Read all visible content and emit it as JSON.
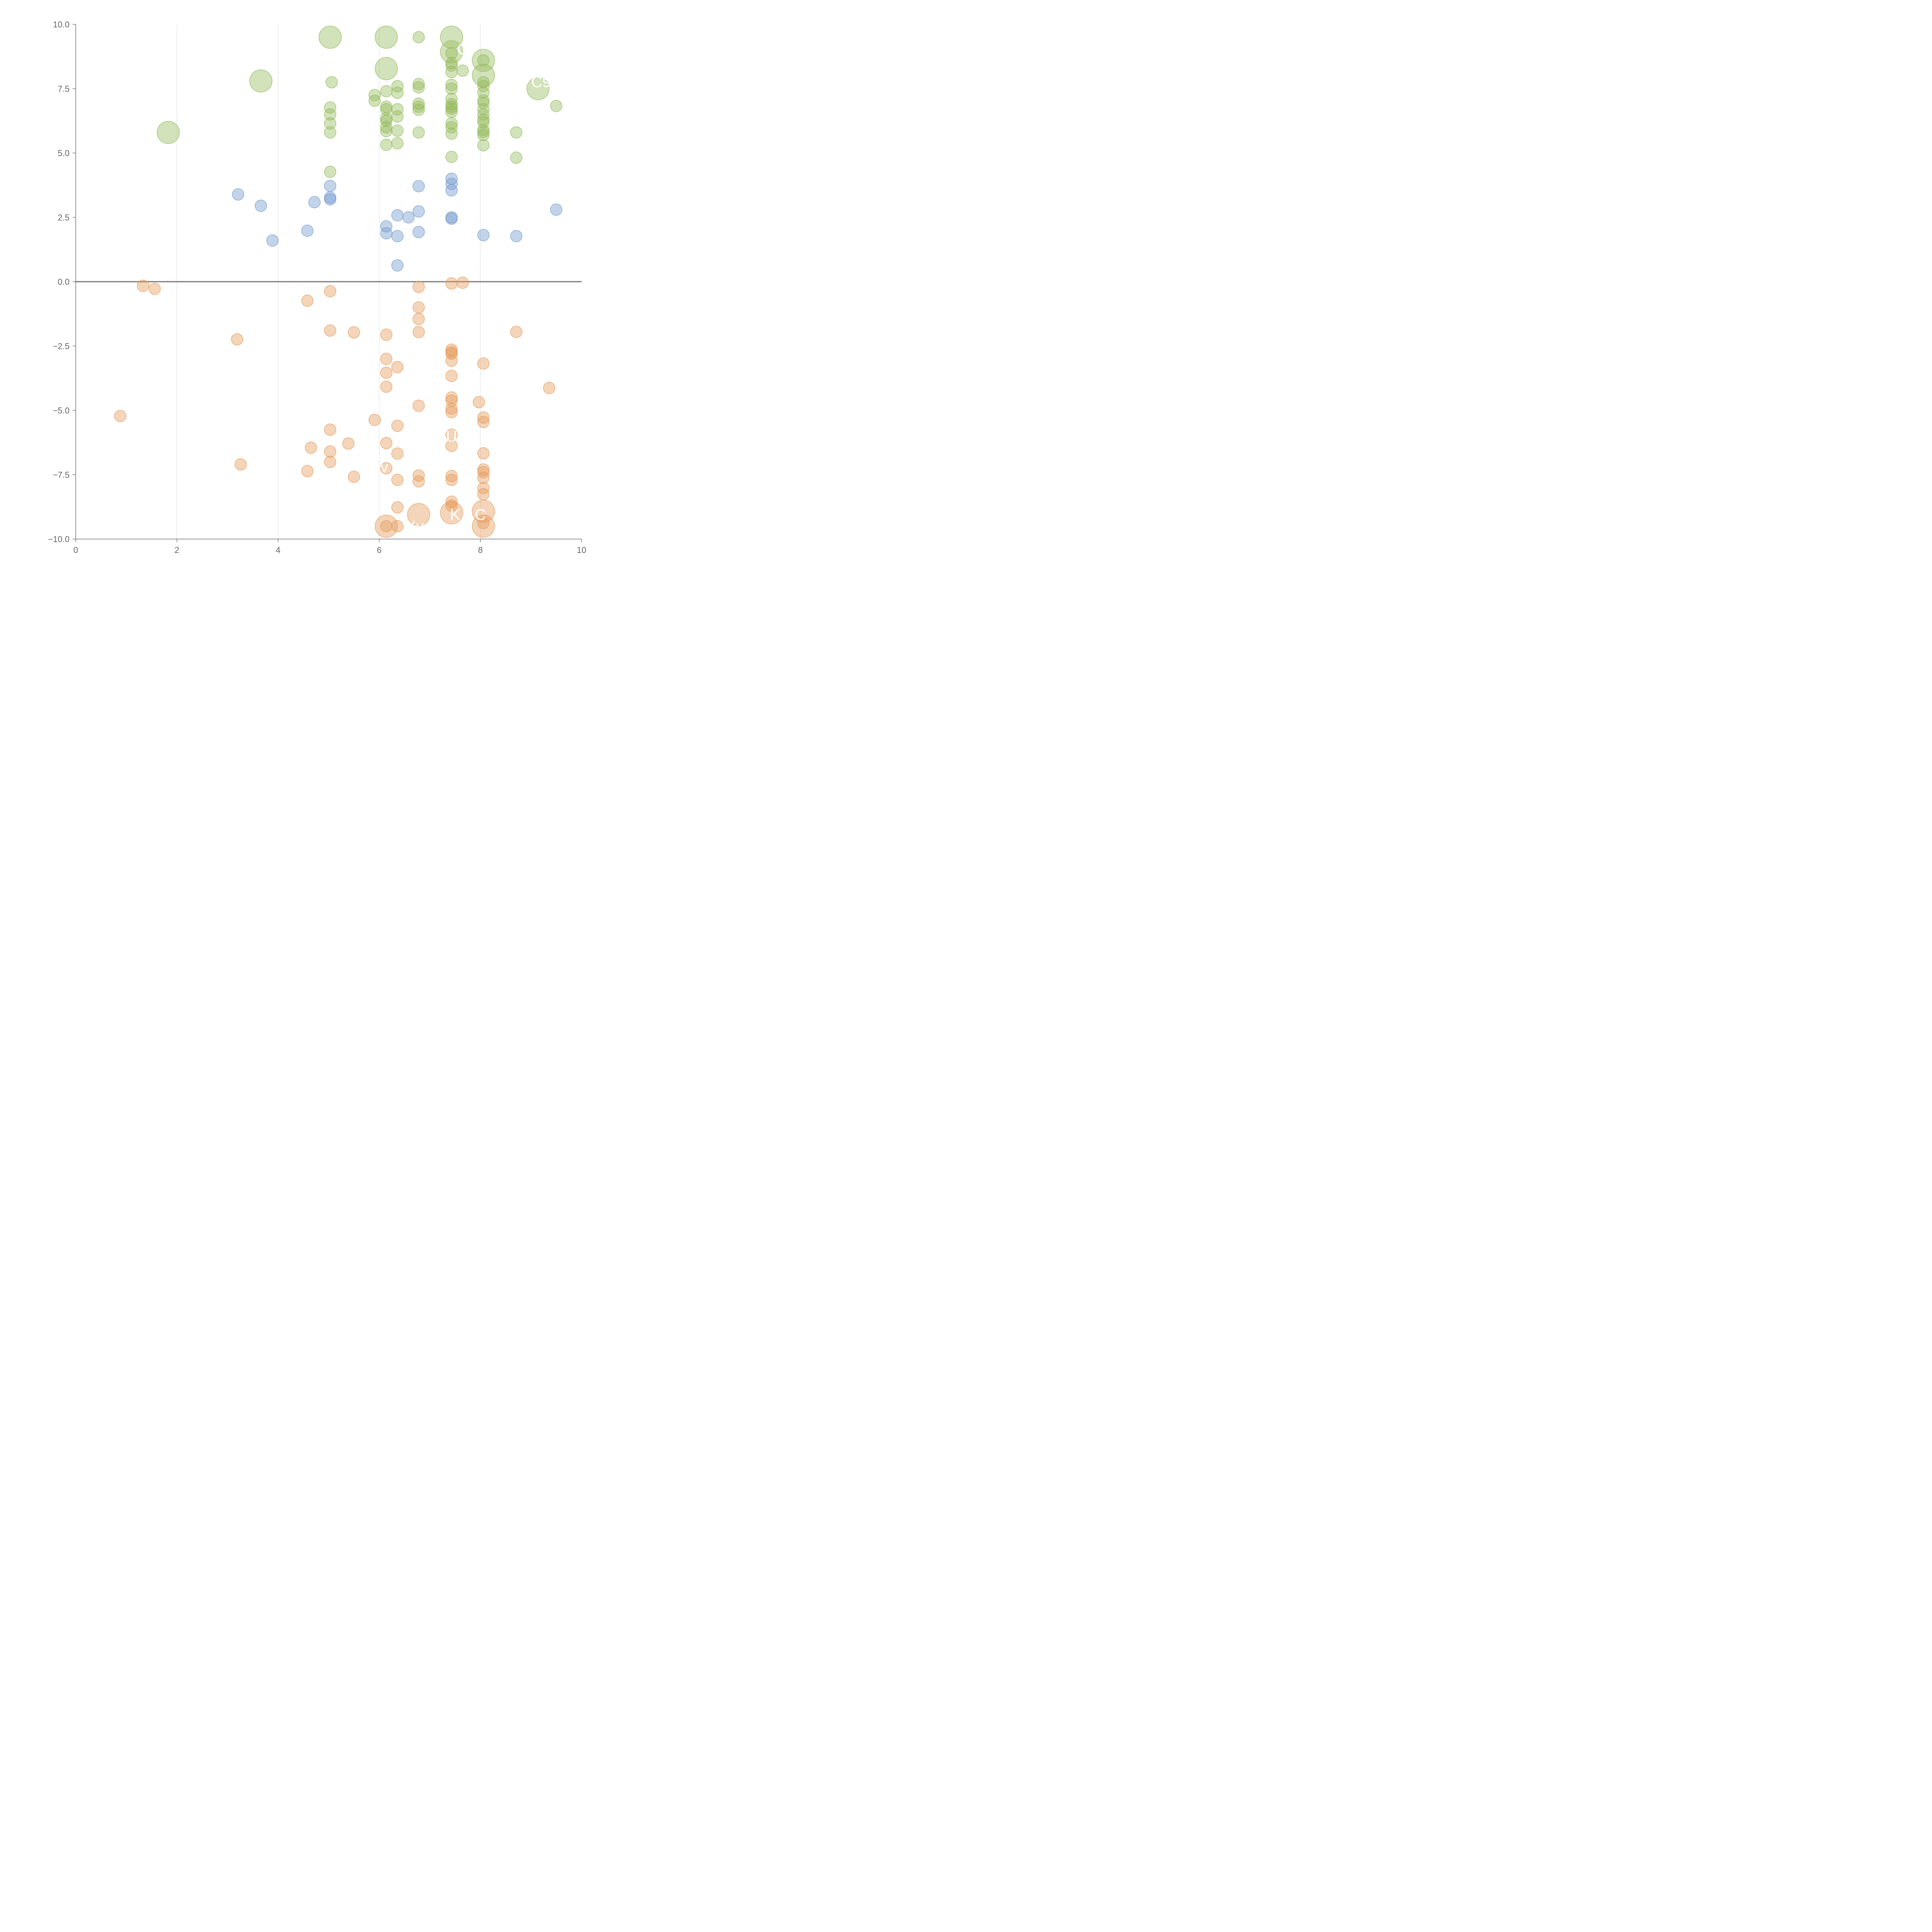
{
  "chart_data": {
    "type": "scatter",
    "title": "",
    "xlabel": "",
    "ylabel": "",
    "xlim": [
      0,
      10
    ],
    "ylim": [
      -10,
      10
    ],
    "grid": {
      "x": true,
      "y": false
    },
    "zero_line": true,
    "x_ticks": [
      0,
      2,
      4,
      6,
      8,
      10
    ],
    "x_tick_labels": [
      "0",
      "2",
      "4",
      "6",
      "8",
      "10"
    ],
    "y_ticks": [
      10,
      7.5,
      5,
      2.5,
      0,
      -2.5,
      -5,
      -7.5,
      -10
    ],
    "y_tick_labels": [
      "10.0",
      "7.5",
      "5.0",
      "2.5",
      "0.0",
      "−2.5",
      "−5.0",
      "−7.5",
      "−10.0"
    ],
    "series": [
      {
        "color": "#93b95a",
        "points": [
          [
            1.83,
            5.8,
            2
          ],
          [
            3.66,
            7.8,
            2
          ],
          [
            5.03,
            9.5,
            2
          ],
          [
            6.14,
            9.5,
            2
          ],
          [
            6.14,
            8.28,
            2
          ],
          [
            7.43,
            9.5,
            2
          ],
          [
            7.43,
            8.93,
            2
          ],
          [
            8.06,
            8.6,
            2
          ],
          [
            8.06,
            8.02,
            2
          ],
          [
            9.14,
            7.5,
            2
          ],
          [
            5.06,
            7.75,
            1
          ],
          [
            5.03,
            6.77,
            1
          ],
          [
            5.03,
            6.5,
            1
          ],
          [
            5.03,
            6.15,
            1
          ],
          [
            5.03,
            5.8,
            1
          ],
          [
            5.03,
            4.27,
            1
          ],
          [
            5.91,
            7.25,
            1
          ],
          [
            5.91,
            7.03,
            1
          ],
          [
            6.14,
            7.4,
            1
          ],
          [
            6.14,
            6.8,
            1
          ],
          [
            6.14,
            6.7,
            1
          ],
          [
            6.14,
            6.35,
            1
          ],
          [
            6.14,
            6.25,
            1
          ],
          [
            6.14,
            6.0,
            1
          ],
          [
            6.14,
            5.85,
            1
          ],
          [
            6.14,
            5.32,
            1
          ],
          [
            6.36,
            7.6,
            1
          ],
          [
            6.36,
            7.34,
            1
          ],
          [
            6.36,
            6.7,
            1
          ],
          [
            6.36,
            6.42,
            1
          ],
          [
            6.36,
            5.87,
            1
          ],
          [
            6.36,
            5.38,
            1
          ],
          [
            6.78,
            9.5,
            1
          ],
          [
            6.78,
            7.68,
            1
          ],
          [
            6.78,
            7.55,
            1
          ],
          [
            6.78,
            6.92,
            1
          ],
          [
            6.78,
            6.8,
            1
          ],
          [
            6.78,
            6.68,
            1
          ],
          [
            6.78,
            5.8,
            1
          ],
          [
            7.43,
            8.88,
            1
          ],
          [
            7.43,
            8.5,
            1
          ],
          [
            7.43,
            8.4,
            1
          ],
          [
            7.43,
            8.15,
            1
          ],
          [
            7.43,
            7.65,
            1
          ],
          [
            7.43,
            7.5,
            1
          ],
          [
            7.43,
            7.1,
            1
          ],
          [
            7.43,
            6.9,
            1
          ],
          [
            7.43,
            6.8,
            1
          ],
          [
            7.43,
            6.72,
            1
          ],
          [
            7.43,
            6.6,
            1
          ],
          [
            7.43,
            6.15,
            1
          ],
          [
            7.43,
            6.0,
            1
          ],
          [
            7.43,
            5.75,
            1
          ],
          [
            7.43,
            4.85,
            1
          ],
          [
            7.65,
            8.2,
            1
          ],
          [
            8.06,
            8.6,
            1
          ],
          [
            8.06,
            7.75,
            1
          ],
          [
            8.06,
            7.6,
            1
          ],
          [
            8.06,
            7.35,
            1
          ],
          [
            8.06,
            7.05,
            1
          ],
          [
            8.06,
            6.95,
            1
          ],
          [
            8.06,
            6.7,
            1
          ],
          [
            8.06,
            6.5,
            1
          ],
          [
            8.06,
            6.3,
            1
          ],
          [
            8.06,
            6.2,
            1
          ],
          [
            8.06,
            5.9,
            1
          ],
          [
            8.06,
            5.82,
            1
          ],
          [
            8.06,
            5.7,
            1
          ],
          [
            8.06,
            5.3,
            1
          ],
          [
            8.71,
            5.8,
            1
          ],
          [
            8.71,
            4.82,
            1
          ],
          [
            9.5,
            6.83,
            1
          ]
        ]
      },
      {
        "color": "#7098cc",
        "points": [
          [
            3.21,
            3.39,
            1
          ],
          [
            3.66,
            2.95,
            1
          ],
          [
            3.89,
            1.6,
            1
          ],
          [
            4.58,
            1.98,
            1
          ],
          [
            4.72,
            3.09,
            1
          ],
          [
            5.03,
            3.72,
            1
          ],
          [
            5.03,
            3.27,
            1
          ],
          [
            5.03,
            3.2,
            1
          ],
          [
            6.14,
            2.15,
            1
          ],
          [
            6.14,
            1.88,
            1
          ],
          [
            6.36,
            2.58,
            1
          ],
          [
            6.36,
            1.77,
            1
          ],
          [
            6.36,
            0.63,
            1
          ],
          [
            6.58,
            2.5,
            1
          ],
          [
            6.78,
            3.71,
            1
          ],
          [
            6.78,
            2.73,
            1
          ],
          [
            6.78,
            1.93,
            1
          ],
          [
            7.43,
            4.0,
            1
          ],
          [
            7.43,
            3.8,
            1
          ],
          [
            7.43,
            3.55,
            1
          ],
          [
            7.43,
            2.5,
            1
          ],
          [
            7.43,
            2.45,
            1
          ],
          [
            8.06,
            1.81,
            1
          ],
          [
            8.71,
            1.77,
            1
          ],
          [
            9.5,
            2.8,
            1
          ]
        ]
      },
      {
        "color": "#e59a5a",
        "points": [
          [
            6.14,
            -9.5,
            2
          ],
          [
            6.78,
            -9.05,
            2
          ],
          [
            7.43,
            -8.98,
            2
          ],
          [
            8.06,
            -8.92,
            2
          ],
          [
            8.06,
            -9.5,
            2
          ],
          [
            0.88,
            -5.22,
            1
          ],
          [
            1.33,
            -0.16,
            1
          ],
          [
            1.56,
            -0.28,
            1
          ],
          [
            3.19,
            -2.24,
            1
          ],
          [
            3.26,
            -7.1,
            1
          ],
          [
            4.58,
            -0.74,
            1
          ],
          [
            4.58,
            -7.36,
            1
          ],
          [
            4.65,
            -6.45,
            1
          ],
          [
            5.03,
            -0.37,
            1
          ],
          [
            5.03,
            -1.9,
            1
          ],
          [
            5.03,
            -5.75,
            1
          ],
          [
            5.03,
            -6.6,
            1
          ],
          [
            5.03,
            -7.0,
            1
          ],
          [
            5.39,
            -6.29,
            1
          ],
          [
            5.5,
            -1.97,
            1
          ],
          [
            5.5,
            -7.58,
            1
          ],
          [
            5.91,
            -5.37,
            1
          ],
          [
            6.14,
            -2.06,
            1
          ],
          [
            6.14,
            -3.0,
            1
          ],
          [
            6.14,
            -3.54,
            1
          ],
          [
            6.14,
            -4.08,
            1
          ],
          [
            6.14,
            -6.27,
            1
          ],
          [
            6.14,
            -7.25,
            1
          ],
          [
            6.14,
            -9.5,
            1
          ],
          [
            6.36,
            -3.32,
            1
          ],
          [
            6.36,
            -5.6,
            1
          ],
          [
            6.36,
            -6.68,
            1
          ],
          [
            6.36,
            -7.7,
            1
          ],
          [
            6.36,
            -8.77,
            1
          ],
          [
            6.36,
            -9.5,
            1
          ],
          [
            6.78,
            -0.2,
            1
          ],
          [
            6.78,
            -1.0,
            1
          ],
          [
            6.78,
            -1.45,
            1
          ],
          [
            6.78,
            -1.96,
            1
          ],
          [
            6.78,
            -4.82,
            1
          ],
          [
            6.78,
            -7.53,
            1
          ],
          [
            6.78,
            -7.76,
            1
          ],
          [
            7.43,
            -0.07,
            1
          ],
          [
            7.43,
            -2.64,
            1
          ],
          [
            7.43,
            -2.73,
            1
          ],
          [
            7.43,
            -2.8,
            1
          ],
          [
            7.43,
            -3.07,
            1
          ],
          [
            7.43,
            -3.66,
            1
          ],
          [
            7.43,
            -4.5,
            1
          ],
          [
            7.43,
            -4.62,
            1
          ],
          [
            7.43,
            -4.93,
            1
          ],
          [
            7.43,
            -5.07,
            1
          ],
          [
            7.43,
            -5.95,
            1
          ],
          [
            7.43,
            -6.38,
            1
          ],
          [
            7.43,
            -7.55,
            1
          ],
          [
            7.43,
            -7.7,
            1
          ],
          [
            7.43,
            -8.55,
            1
          ],
          [
            7.43,
            -8.7,
            1
          ],
          [
            7.65,
            -0.04,
            1
          ],
          [
            7.97,
            -4.68,
            1
          ],
          [
            8.06,
            -3.18,
            1
          ],
          [
            8.06,
            -5.28,
            1
          ],
          [
            8.06,
            -5.45,
            1
          ],
          [
            8.06,
            -6.67,
            1
          ],
          [
            8.06,
            -7.3,
            1
          ],
          [
            8.06,
            -7.4,
            1
          ],
          [
            8.06,
            -7.62,
            1
          ],
          [
            8.06,
            -8.02,
            1
          ],
          [
            8.06,
            -8.26,
            1
          ],
          [
            8.06,
            -9.38,
            1
          ],
          [
            8.71,
            -1.95,
            1
          ],
          [
            9.36,
            -4.13,
            1
          ]
        ]
      }
    ],
    "labels": [
      {
        "text": "C",
        "x": 7.65,
        "y": 9.05
      },
      {
        "text": "C9",
        "x": 9.2,
        "y": 7.77
      },
      {
        "text": "U",
        "x": 7.43,
        "y": -6.0
      },
      {
        "text": "v",
        "x": 6.1,
        "y": -7.2
      },
      {
        "text": "K",
        "x": 7.5,
        "y": -9.05
      },
      {
        "text": "C",
        "x": 8.0,
        "y": -9.05
      },
      {
        "text": "Xvc",
        "x": 6.78,
        "y": -9.5
      }
    ]
  }
}
